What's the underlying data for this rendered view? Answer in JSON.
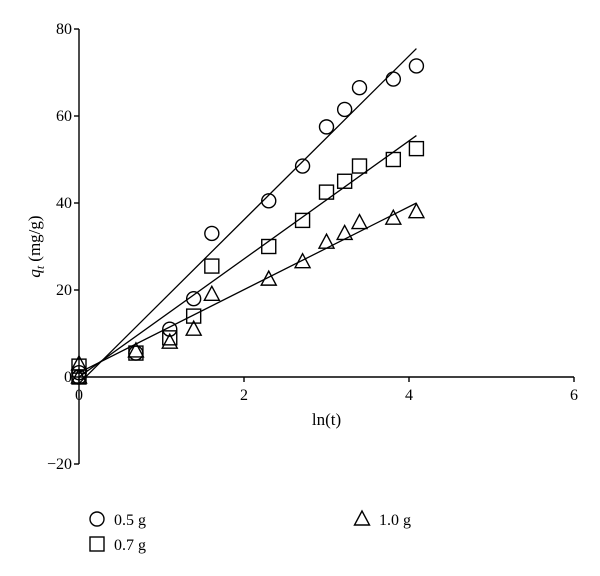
{
  "chart_data": {
    "type": "scatter",
    "title": "",
    "xlabel": "ln(t)",
    "ylabel": {
      "symbol": "q",
      "subscript": "t",
      "unit": "(mg/g)"
    },
    "xlim": [
      0,
      6
    ],
    "ylim": [
      -20,
      80
    ],
    "xticks": [
      "0",
      "2",
      "4",
      "6"
    ],
    "yticks": [
      "−20",
      "0",
      "20",
      "40",
      "60",
      "80"
    ],
    "grid": false,
    "legend_position": "bottom",
    "series": [
      {
        "name": "0.5 g",
        "marker": "circle",
        "x": [
          0,
          0,
          0.69,
          1.1,
          1.39,
          1.61,
          2.3,
          2.71,
          3.0,
          3.22,
          3.4,
          3.81,
          4.09
        ],
        "y": [
          1,
          0,
          5.5,
          11,
          18,
          33,
          40.5,
          48.5,
          57.5,
          61.5,
          66.5,
          68.5,
          71.5
        ],
        "fit": {
          "x": [
            0,
            4.09
          ],
          "y": [
            -1.5,
            75.5
          ]
        }
      },
      {
        "name": "0.7 g",
        "marker": "square",
        "x": [
          0,
          0,
          0.69,
          1.1,
          1.39,
          1.61,
          2.3,
          2.71,
          3.0,
          3.22,
          3.4,
          3.81,
          4.09
        ],
        "y": [
          2.5,
          0,
          5.5,
          9,
          14,
          25.5,
          30,
          36,
          42.5,
          45,
          48.5,
          50,
          52.5
        ],
        "fit": {
          "x": [
            0,
            4.09
          ],
          "y": [
            0,
            55.5
          ]
        }
      },
      {
        "name": "1.0 g",
        "marker": "triangle",
        "x": [
          0,
          0,
          0.69,
          1.1,
          1.39,
          1.61,
          2.3,
          2.71,
          3.0,
          3.22,
          3.4,
          3.81,
          4.09
        ],
        "y": [
          3,
          0,
          6,
          8,
          11,
          19,
          22.5,
          26.5,
          31,
          33,
          35.5,
          36.5,
          38
        ],
        "fit": {
          "x": [
            0,
            4.09
          ],
          "y": [
            1,
            40
          ]
        }
      }
    ]
  }
}
